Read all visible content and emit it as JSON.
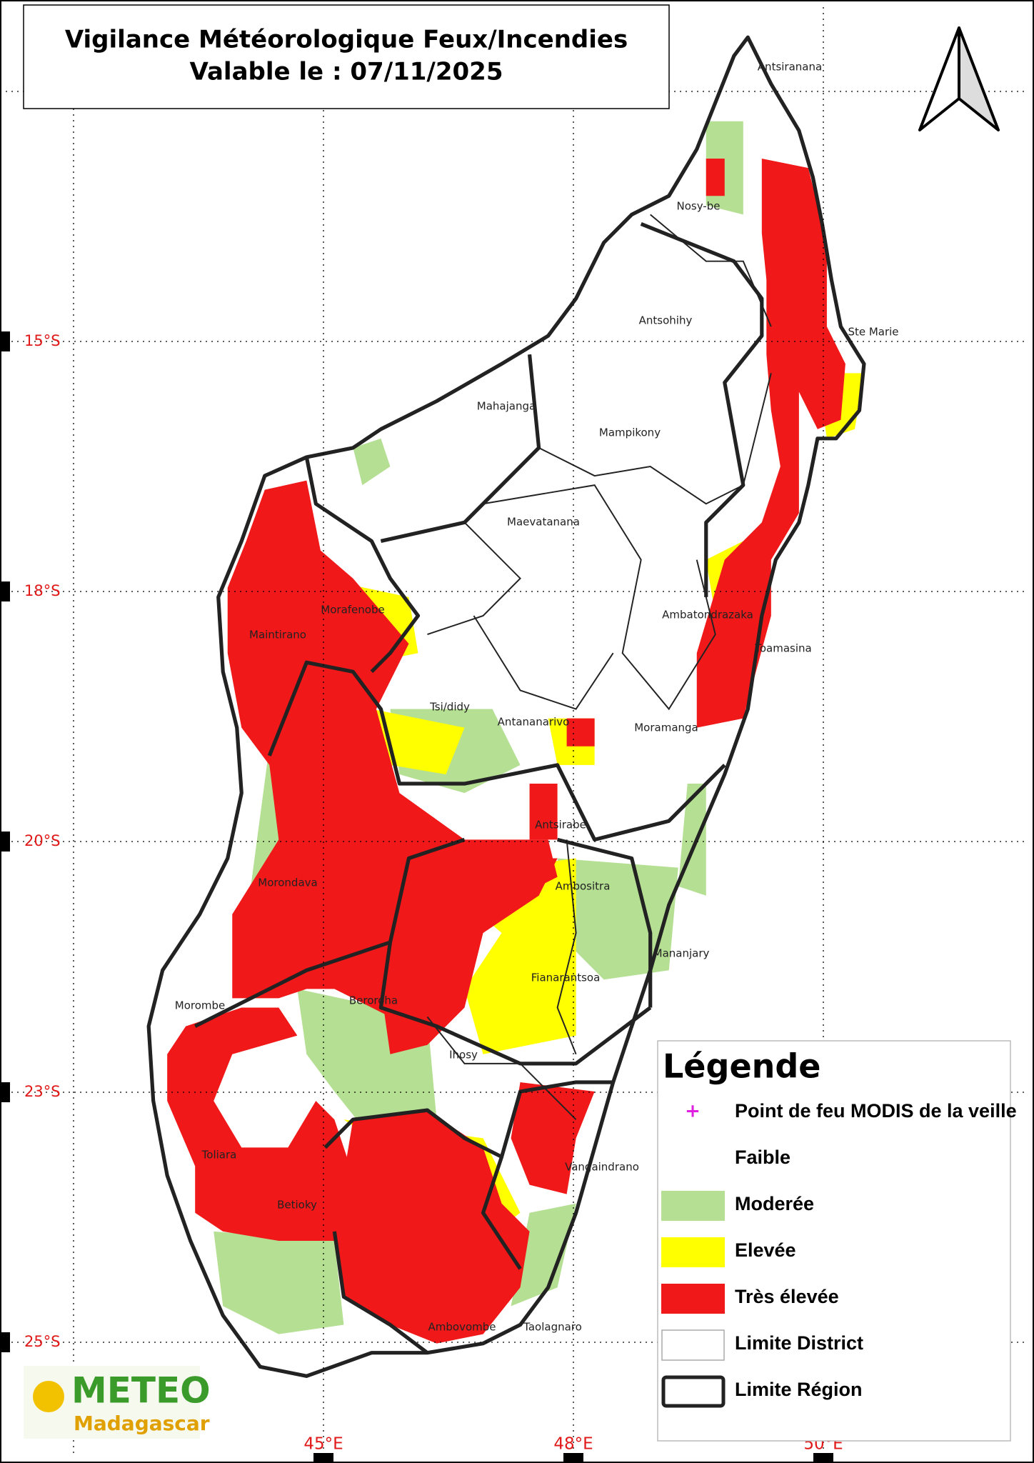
{
  "title": [
    "Vigilance Météorologique Feux/Incendies",
    "Valable le : 07/11/2025"
  ],
  "latitude_labels": [
    "15°S",
    "18°S",
    "20°S",
    "23°S",
    "25°S"
  ],
  "longitude_labels": [
    "45°E",
    "48°E",
    "50°E"
  ],
  "places": [
    "Antsiranana",
    "Nosy-be",
    "Antsohihy",
    "Ste Marie",
    "Mahajanga",
    "Mampikony",
    "Maevatanana",
    "Morafenobe",
    "Maintirano",
    "Ambatondrazaka",
    "Toamasina",
    "Tsi/didy",
    "Antananarivo",
    "Moramanga",
    "Antsirabe",
    "Morondava",
    "Ambositra",
    "Mananjary",
    "Fianarantsoa",
    "Morombe",
    "Beroroha",
    "Ihosy",
    "Toliara",
    "Vangaindrano",
    "Betioky",
    "Ambovombe",
    "Taolagnaro"
  ],
  "legend": {
    "title": "Légende",
    "items": [
      "Point de feu MODIS de la veille",
      "Faible",
      "Moderée",
      "Elevée",
      "Très élevée",
      "Limite District",
      "Limite Région"
    ]
  },
  "logo": {
    "name": "METEO",
    "subtitle": "Madagascar"
  }
}
